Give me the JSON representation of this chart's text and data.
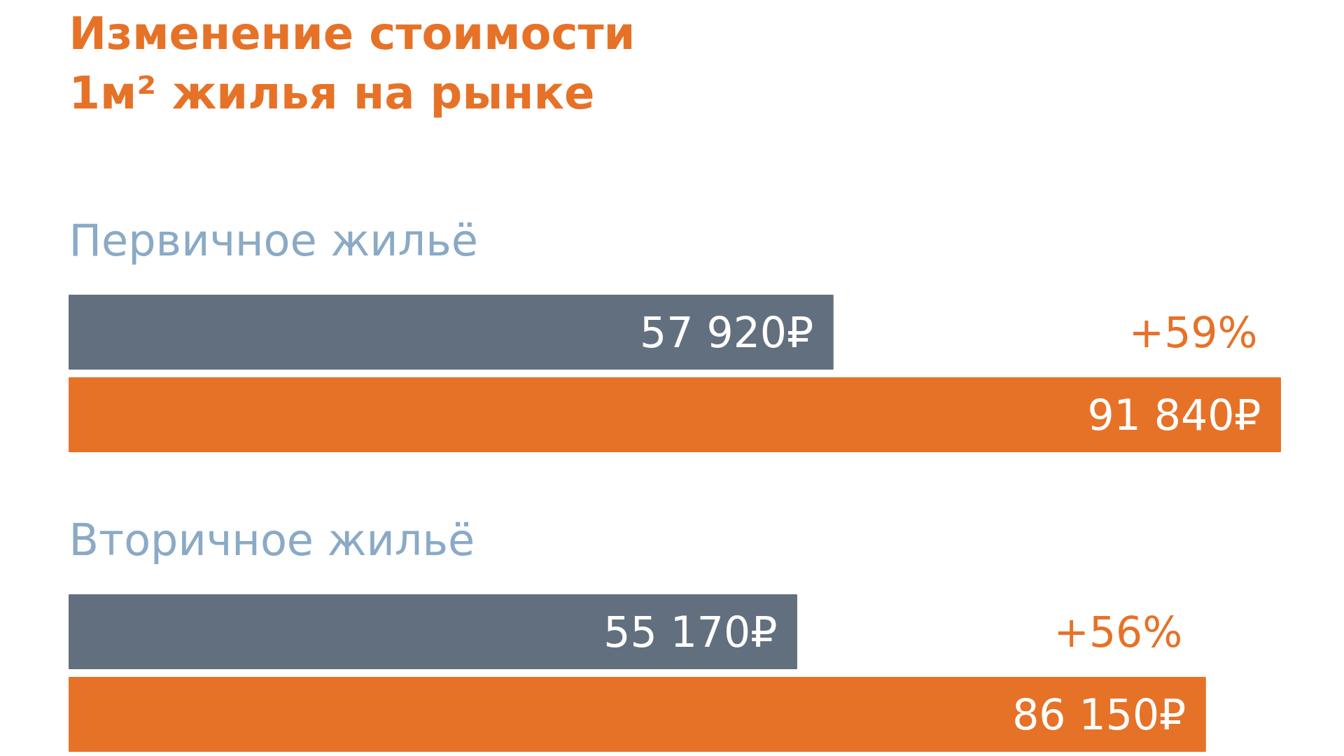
{
  "chart_data": {
    "type": "bar",
    "orientation": "horizontal",
    "title": "Изменение стоимости\n1м² жилья на рынке",
    "categories": [
      "Первичное жильё",
      "Вторичное жильё"
    ],
    "series": [
      {
        "color": "#626f7f",
        "values": [
          57920,
          55170
        ],
        "value_labels": [
          "57 920₽",
          "55 170₽"
        ]
      },
      {
        "color": "#e67228",
        "values": [
          91840,
          86150
        ],
        "value_labels": [
          "91 840₽",
          "86 150₽"
        ]
      }
    ],
    "annotations": [
      "+59%",
      "+56%"
    ]
  }
}
